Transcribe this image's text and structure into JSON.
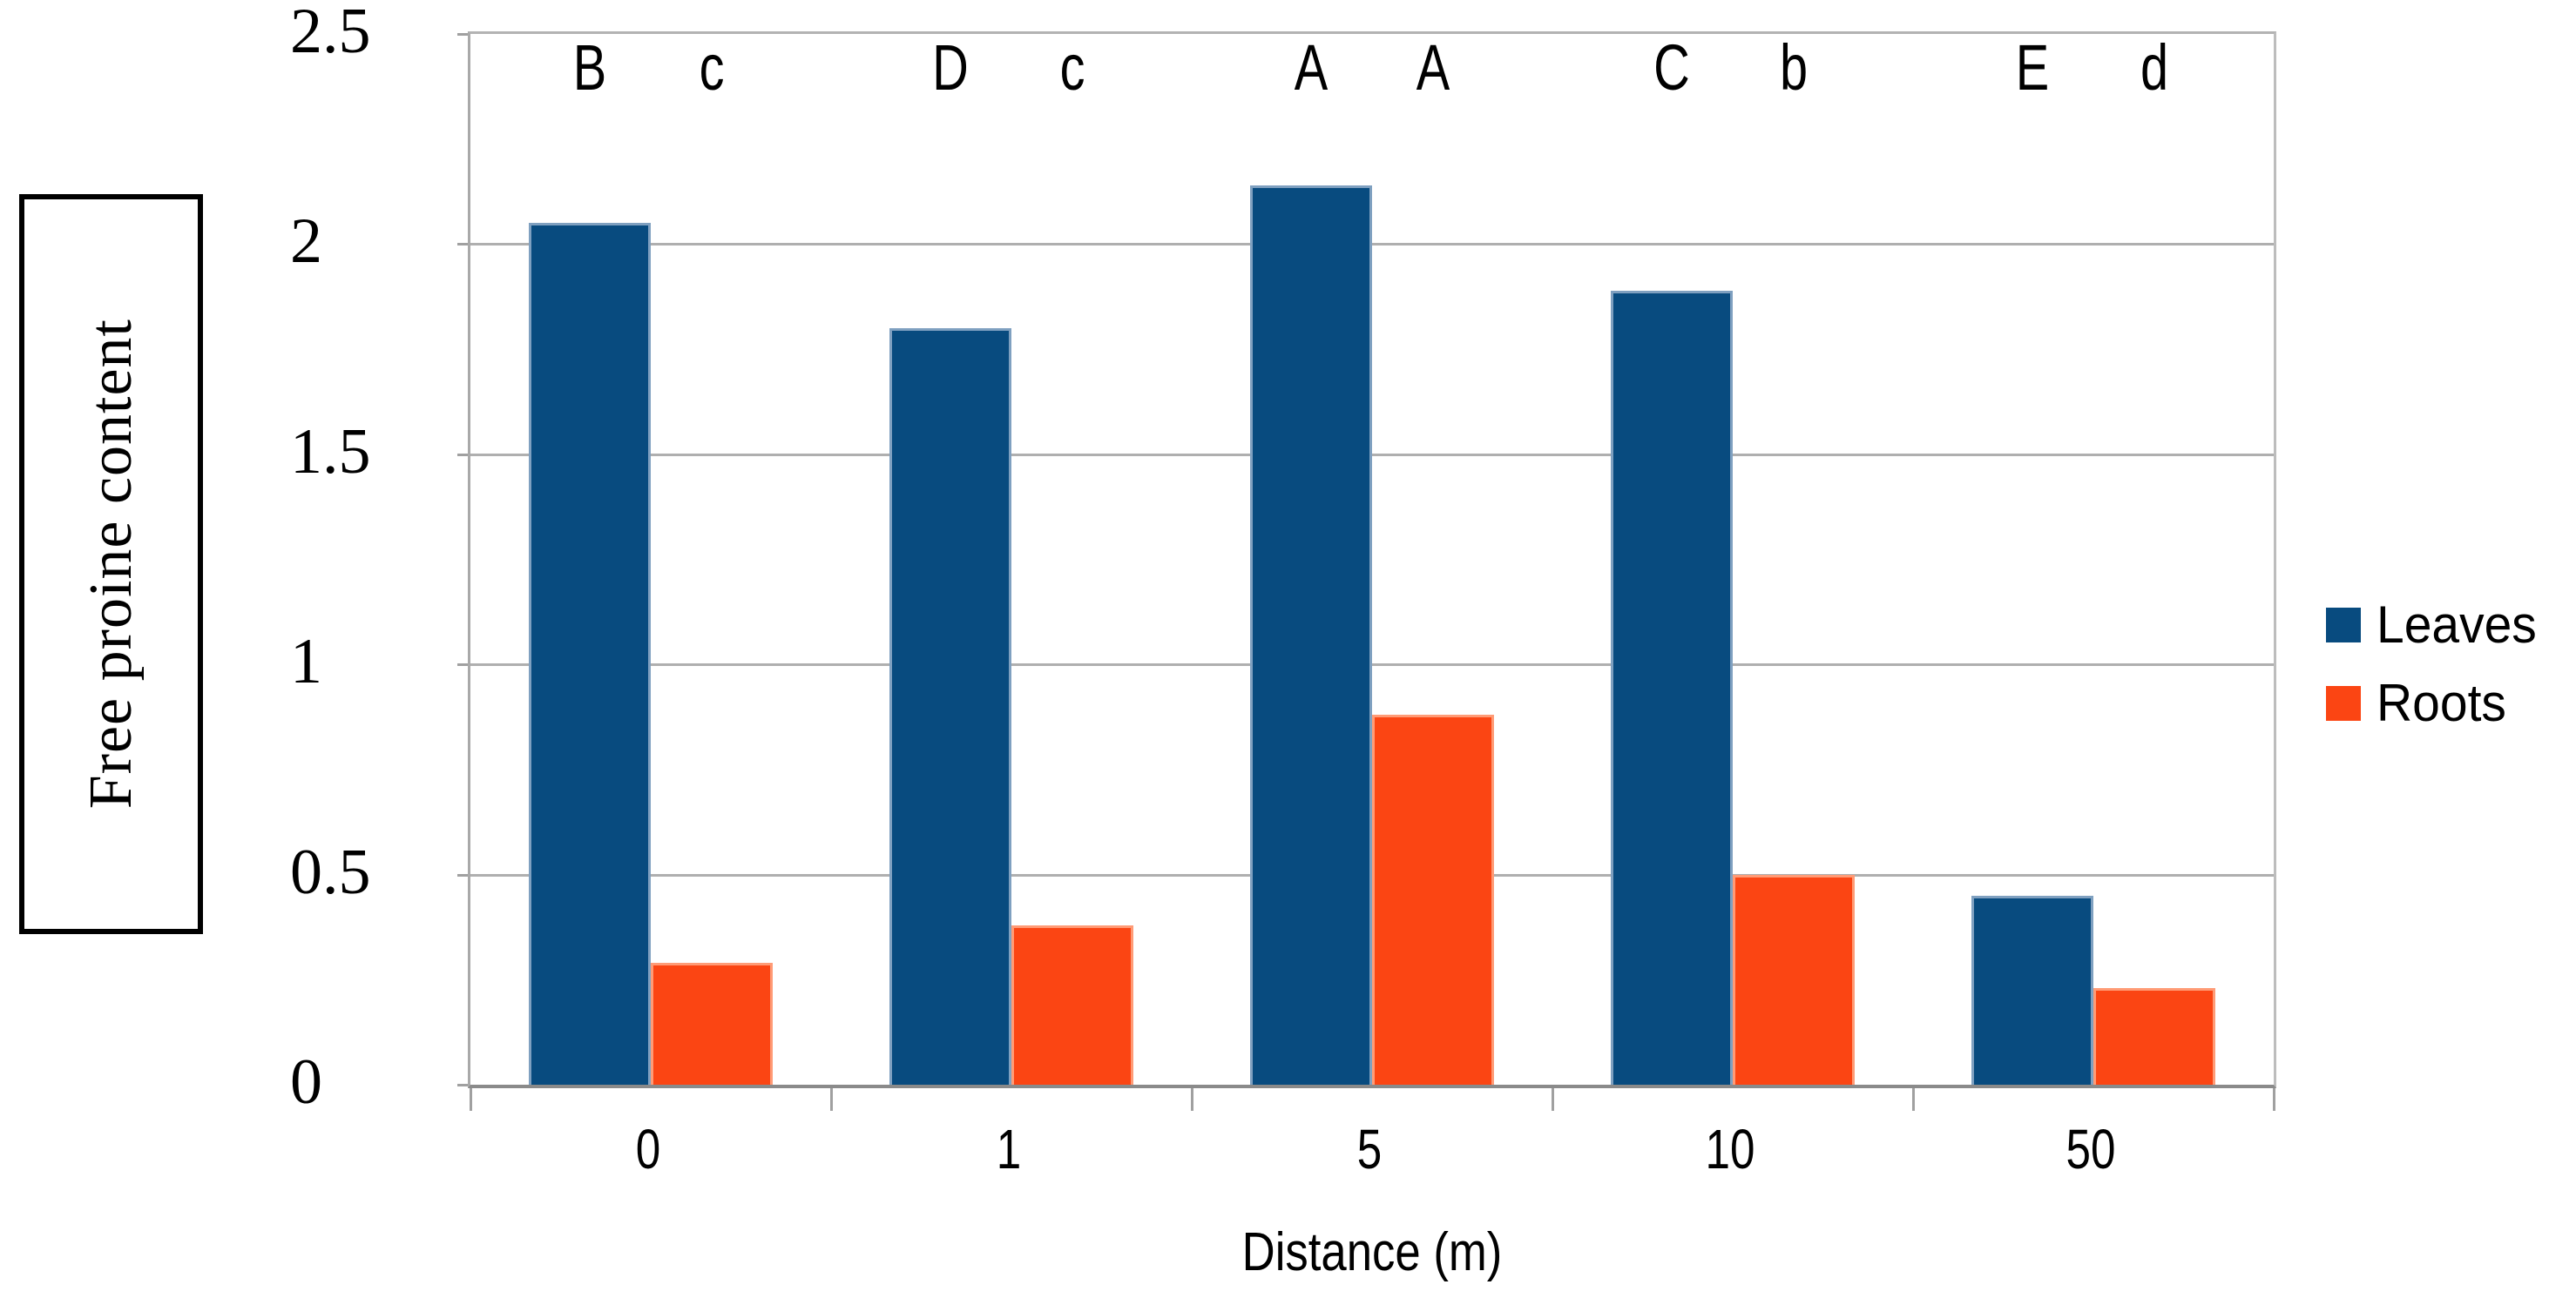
{
  "chart_data": {
    "type": "bar",
    "title": "",
    "xlabel": "Distance (m)",
    "ylabel": "Free proine content",
    "categories": [
      "0",
      "1",
      "5",
      "10",
      "50"
    ],
    "series": [
      {
        "name": "Leaves",
        "color": "#084b7f",
        "values": [
          2.05,
          1.8,
          2.14,
          1.89,
          0.45
        ],
        "sig_letters": [
          "B",
          "D",
          "A",
          "C",
          "E"
        ]
      },
      {
        "name": "Roots",
        "color": "#fb4513",
        "values": [
          0.29,
          0.38,
          0.88,
          0.5,
          0.23
        ],
        "sig_letters": [
          "c",
          "c",
          "A",
          "b",
          "d"
        ]
      }
    ],
    "ylim": [
      0,
      2.5
    ],
    "ytick_step": 0.5,
    "y_tick_labels": [
      "2.5",
      "2",
      "1.5",
      "1",
      "0.5",
      "0"
    ],
    "grid": true,
    "legend_position": "right"
  }
}
